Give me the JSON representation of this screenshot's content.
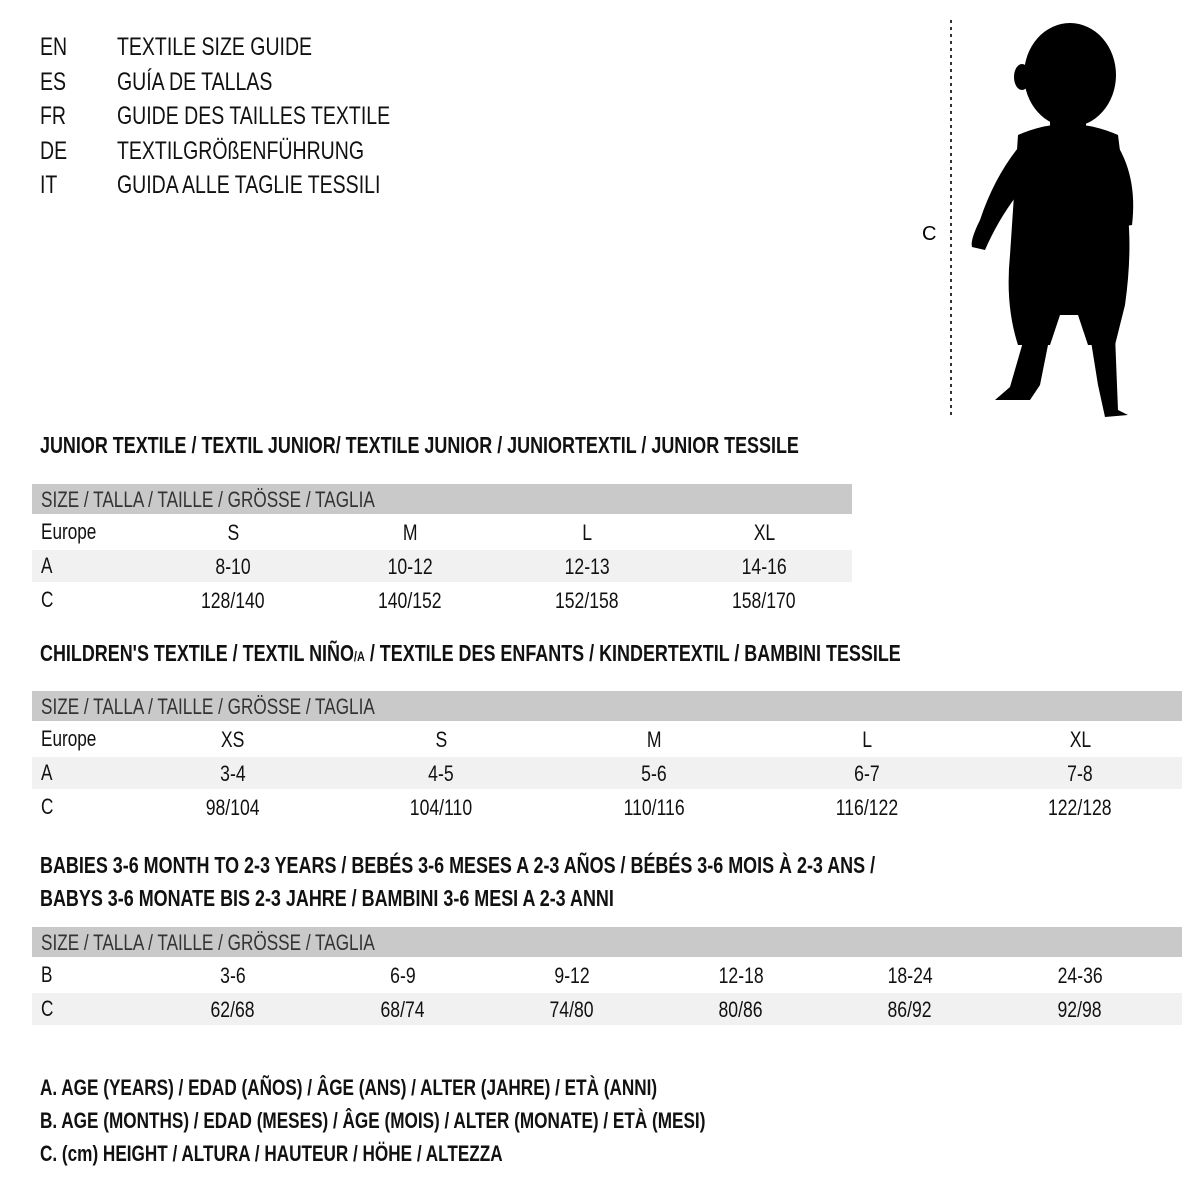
{
  "languages": [
    {
      "code": "EN",
      "text": "TEXTILE SIZE GUIDE"
    },
    {
      "code": "ES",
      "text": "GUÍA DE TALLAS"
    },
    {
      "code": "FR",
      "text": "GUIDE DES TAILLES TEXTILE"
    },
    {
      "code": "DE",
      "text": "TEXTILGRÖßENFÜHRUNG"
    },
    {
      "code": "IT",
      "text": "GUIDA ALLE TAGLIE TESSILI"
    }
  ],
  "figure": {
    "height_label": "C"
  },
  "junior": {
    "title": "JUNIOR TEXTILE / TEXTIL JUNIOR/ TEXTILE JUNIOR / JUNIORTEXTIL / JUNIOR TESSILE",
    "header": "SIZE / TALLA / TAILLE / GRÖSSE / TAGLIA",
    "rows": [
      {
        "label": "Europe",
        "cells": [
          "S",
          "M",
          "L",
          "XL"
        ]
      },
      {
        "label": "A",
        "cells": [
          "8-10",
          "10-12",
          "12-13",
          "14-16"
        ]
      },
      {
        "label": "C",
        "cells": [
          "128/140",
          "140/152",
          "152/158",
          "158/170"
        ]
      }
    ]
  },
  "children": {
    "title_a": "CHILDREN'S TEXTILE / TEXTIL NIÑO",
    "title_sub": "/A",
    "title_b": " / TEXTILE DES ENFANTS / KINDERTEXTIL / BAMBINI TESSILE",
    "header": "SIZE / TALLA / TAILLE / GRÖSSE / TAGLIA",
    "rows": [
      {
        "label": "Europe",
        "cells": [
          "XS",
          "S",
          "M",
          "L",
          "XL"
        ]
      },
      {
        "label": "A",
        "cells": [
          "3-4",
          "4-5",
          "5-6",
          "6-7",
          "7-8"
        ]
      },
      {
        "label": "C",
        "cells": [
          "98/104",
          "104/110",
          "110/116",
          "116/122",
          "122/128"
        ]
      }
    ]
  },
  "babies": {
    "title_line1": "BABIES 3-6 MONTH TO 2-3 YEARS / BEBÉS 3-6 MESES A 2-3 AÑOS / BÉBÉS 3-6 MOIS À 2-3 ANS /",
    "title_line2": "BABYS 3-6 MONATE BIS 2-3 JAHRE / BAMBINI 3-6 MESI A 2-3 ANNI",
    "header": "SIZE / TALLA / TAILLE / GRÖSSE / TAGLIA",
    "rows": [
      {
        "label": "B",
        "cells": [
          "3-6",
          "6-9",
          "9-12",
          "12-18",
          "18-24",
          "24-36"
        ]
      },
      {
        "label": "C",
        "cells": [
          "62/68",
          "68/74",
          "74/80",
          "80/86",
          "86/92",
          "92/98"
        ]
      }
    ]
  },
  "legend": [
    "A. AGE (YEARS) / EDAD (AÑOS) / ÂGE (ANS) / ALTER (JAHRE) / ETÀ (ANNI)",
    "B. AGE (MONTHS) / EDAD (MESES) / ÂGE (MOIS) / ALTER (MONATE) / ETÀ (MESI)",
    "C. (cm) HEIGHT / ALTURA / HAUTEUR / HÖHE / ALTEZZA"
  ],
  "colors": {
    "header_bg": "#c9c9c9",
    "shade_bg": "#f1f1f1",
    "text": "#111111"
  }
}
